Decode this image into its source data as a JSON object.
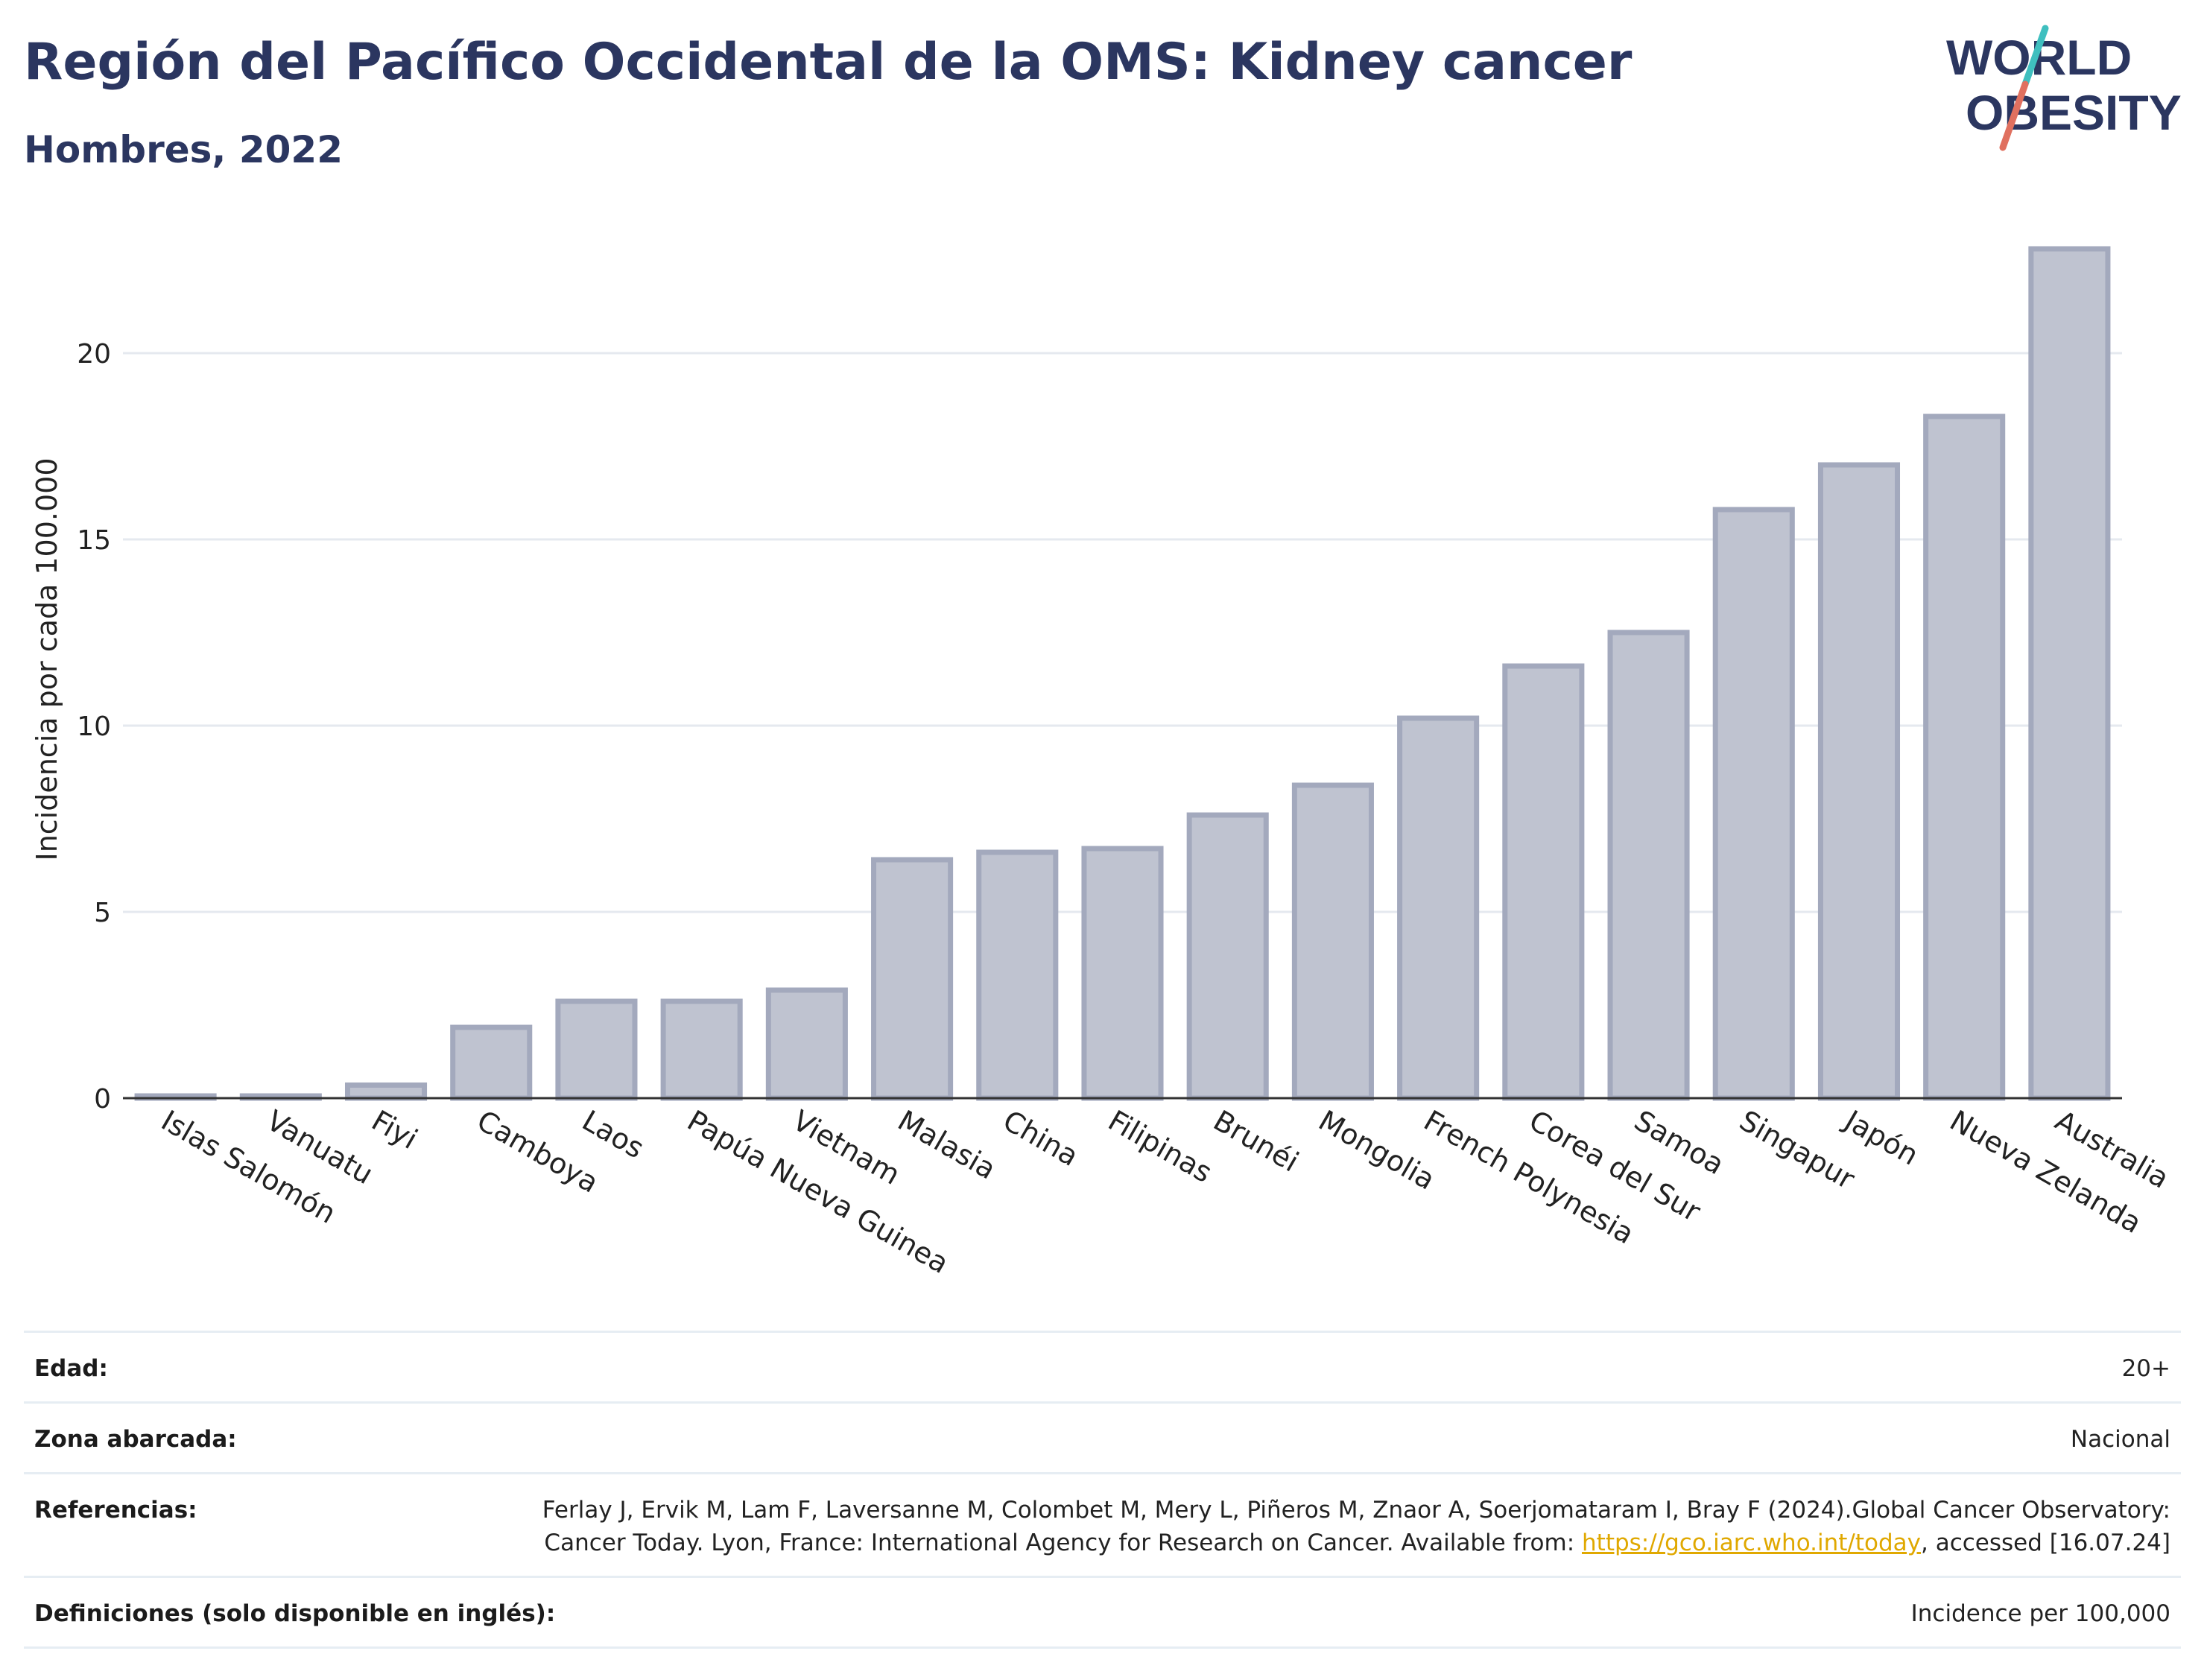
{
  "header": {
    "title": "Región del Pacífico Occidental de la OMS: Kidney cancer",
    "subtitle": "Hombres, 2022"
  },
  "logo": {
    "line1": "WORLD",
    "line2": "OBESITY",
    "slash_colors": [
      "#3fbfbf",
      "#e0705f"
    ],
    "text_color": "#2b3660"
  },
  "chart_data": {
    "type": "bar",
    "categories": [
      "Islas Salomón",
      "Vanuatu",
      "Fiyi",
      "Camboya",
      "Laos",
      "Papúa Nueva Guinea",
      "Vietnam",
      "Malasia",
      "China",
      "Filipinas",
      "Brunéi",
      "Mongolia",
      "French Polynesia",
      "Corea del Sur",
      "Samoa",
      "Singapur",
      "Japón",
      "Nueva Zelanda",
      "Australia"
    ],
    "values": [
      0.05,
      0.05,
      0.35,
      1.9,
      2.6,
      2.6,
      2.9,
      6.4,
      6.6,
      6.7,
      7.6,
      8.4,
      10.2,
      11.6,
      12.5,
      15.8,
      17.0,
      18.3,
      22.8
    ],
    "ylabel": "Incidencia por cada 100.000",
    "xlabel": "",
    "yticks": [
      0,
      5,
      10,
      15,
      20
    ],
    "ylim": [
      0,
      23.5
    ],
    "grid": true,
    "bar_fill": "#bfc3d0",
    "bar_stroke": "#a3a9bd"
  },
  "footer": {
    "rows": [
      {
        "label": "Edad:",
        "value": "20+"
      },
      {
        "label": "Zona abarcada:",
        "value": "Nacional"
      },
      {
        "label": "Referencias:",
        "value_pre": "Ferlay J, Ervik M, Lam F, Laversanne M, Colombet M, Mery L, Piñeros M, Znaor A, Soerjomataram I, Bray F (2024).Global Cancer Observatory: Cancer Today. Lyon, France: International Agency for Research on Cancer. Available from: ",
        "link": "https://gco.iarc.who.int/today",
        "value_post": ", accessed [16.07.24]"
      },
      {
        "label": "Definiciones (solo disponible en inglés):",
        "value": "Incidence per 100,000"
      }
    ]
  }
}
